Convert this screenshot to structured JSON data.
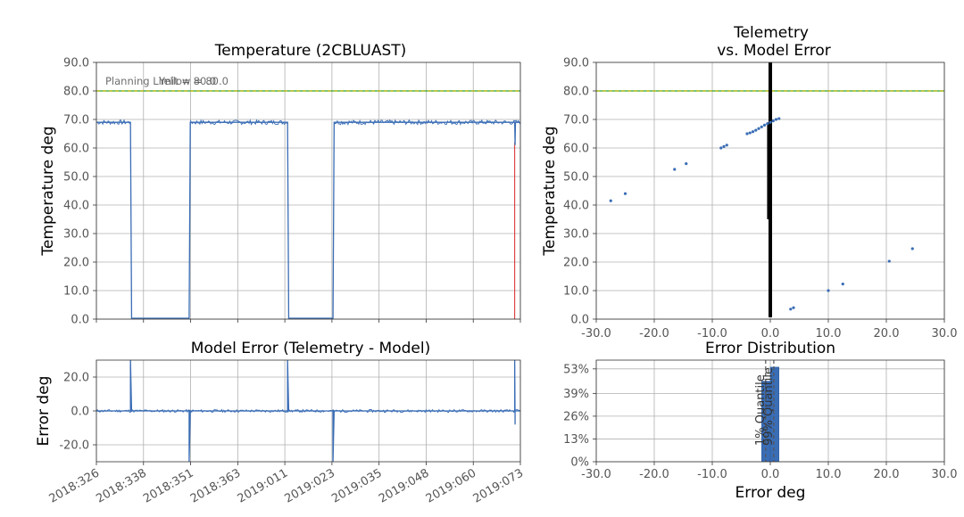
{
  "chart_data": [
    {
      "type": "line",
      "title": "Temperature (2CBLUAST)",
      "xlabel": "",
      "ylabel": "Temperature deg",
      "yticks": [
        "0.0",
        "10.0",
        "20.0",
        "30.0",
        "40.0",
        "50.0",
        "60.0",
        "70.0",
        "80.0",
        "90.0"
      ],
      "ylim": [
        0,
        90
      ],
      "xlim": [
        326,
        438
      ],
      "grid": true,
      "annotations": [
        "Planning Limit = 80.0",
        "Yellow = 80.0"
      ],
      "limit_line": 80.0,
      "colors": {
        "telemetry": "#3a6db5",
        "limit_red": "#d62728",
        "limit_yellow": "#b5b500",
        "limit_green": "#2ca02c"
      },
      "series": [
        {
          "x": [
            326,
            335,
            335.3,
            350.5,
            350.8,
            376.5,
            376.8,
            388.5,
            388.8,
            436.5,
            436.6,
            436.7,
            438
          ],
          "values": [
            69,
            69,
            0.3,
            0.3,
            69,
            69,
            0.3,
            0.3,
            69,
            69,
            61,
            69,
            69
          ]
        }
      ],
      "red_marker_x": 436.5,
      "red_marker_range": [
        0,
        62
      ]
    },
    {
      "type": "scatter",
      "title": "Telemetry\nvs. Model Error",
      "title_lines": [
        "Telemetry",
        "vs. Model Error"
      ],
      "xlabel": "",
      "ylabel": "Temperature deg",
      "xticks": [
        "-30.0",
        "-20.0",
        "-10.0",
        "0.0",
        "10.0",
        "20.0",
        "30.0"
      ],
      "yticks": [
        "0.0",
        "10.0",
        "20.0",
        "30.0",
        "40.0",
        "50.0",
        "60.0",
        "70.0",
        "80.0",
        "90.0"
      ],
      "xlim": [
        -30,
        30
      ],
      "ylim": [
        0,
        90
      ],
      "grid": true,
      "limit_line": 80.0,
      "series": [
        {
          "x": [
            -27.5,
            -25,
            -16.5,
            -14.5,
            -8.5,
            -8,
            -7.5,
            -4,
            -3.5,
            -3,
            -2.5,
            -2,
            -1.5,
            -1,
            -0.5,
            0,
            0.5,
            1,
            1.5,
            3.5,
            4,
            10,
            12.5,
            20.5,
            24.5
          ],
          "values": [
            41.5,
            44,
            52.5,
            54.5,
            60,
            60.5,
            61,
            65,
            65.3,
            65.7,
            66.2,
            66.8,
            67.4,
            68,
            68.5,
            69,
            69.5,
            70,
            70.3,
            3.5,
            4,
            10,
            12.3,
            20.3,
            24.7
          ]
        }
      ],
      "dense_band": {
        "x": [
          -0.8,
          0.4
        ],
        "y": [
          0,
          90
        ]
      }
    },
    {
      "type": "line",
      "title": "Model Error (Telemetry - Model)",
      "xlabel": "",
      "ylabel": "Error deg",
      "xticks": [
        "2018:326",
        "2018:338",
        "2018:351",
        "2018:363",
        "2019:011",
        "2019:023",
        "2019:035",
        "2019:048",
        "2019:060",
        "2019:073"
      ],
      "yticks": [
        "-20.0",
        "0.0",
        "20.0"
      ],
      "ylim": [
        -30,
        30
      ],
      "xlim": [
        326,
        438
      ],
      "grid": true,
      "series": [
        {
          "x": [
            326,
            335,
            335,
            335.3,
            350.5,
            350.5,
            350.8,
            376.5,
            376.5,
            376.8,
            388.5,
            388.5,
            388.8,
            436.5,
            436.5,
            436.6,
            436.6,
            436.7,
            438
          ],
          "values": [
            0,
            0,
            30,
            0,
            0,
            -30,
            0,
            0,
            30,
            0,
            0,
            -30,
            0,
            0,
            30,
            -8,
            0,
            0,
            0
          ]
        }
      ]
    },
    {
      "type": "bar",
      "title": "Error Distribution",
      "xlabel": "Error deg",
      "ylabel": "",
      "xticks": [
        "-30.0",
        "-20.0",
        "-10.0",
        "0.0",
        "10.0",
        "20.0",
        "30.0"
      ],
      "yticks": [
        "0%",
        "13%",
        "26%",
        "39%",
        "53%"
      ],
      "xlim": [
        -30,
        30
      ],
      "ylim": [
        0,
        58
      ],
      "grid": true,
      "bins": [
        {
          "x0": -1.5,
          "x1": 0,
          "value": 46
        },
        {
          "x0": 0,
          "x1": 1.5,
          "value": 54
        }
      ],
      "quantiles": [
        {
          "label": "1% Quantile",
          "x": -0.8
        },
        {
          "label": "99% Quantile",
          "x": 0.6
        }
      ]
    }
  ]
}
